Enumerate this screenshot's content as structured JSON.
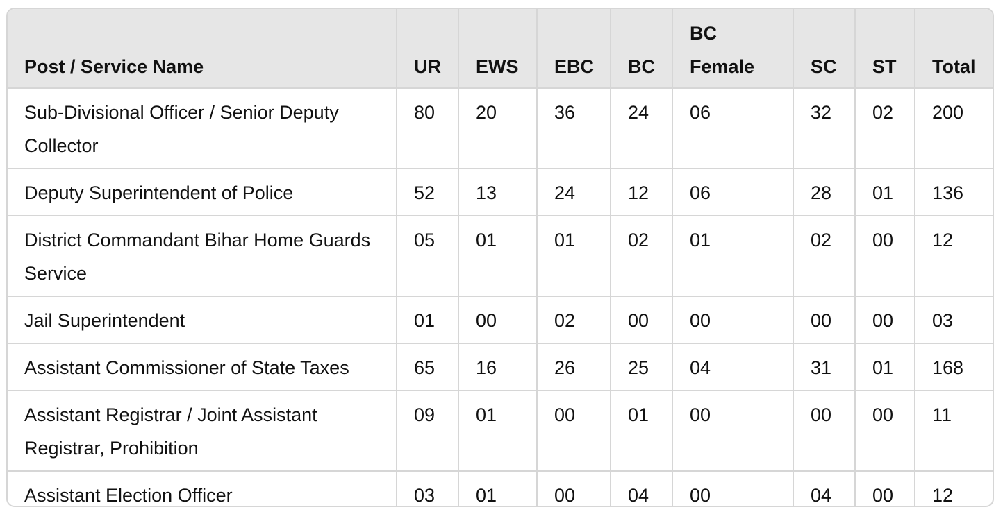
{
  "table": {
    "headers": [
      "Post / Service Name",
      "UR",
      "EWS",
      "EBC",
      "BC",
      "BC Female",
      "SC",
      "ST",
      "Total"
    ],
    "rows": [
      [
        "Sub-Divisional Officer / Senior Deputy Collector",
        "80",
        "20",
        "36",
        "24",
        "06",
        "32",
        "02",
        "200"
      ],
      [
        "Deputy Superintendent of Police",
        "52",
        "13",
        "24",
        "12",
        "06",
        "28",
        "01",
        "136"
      ],
      [
        "District Commandant Bihar Home Guards Service",
        "05",
        "01",
        "01",
        "02",
        "01",
        "02",
        "00",
        "12"
      ],
      [
        "Jail Superintendent",
        "01",
        "00",
        "02",
        "00",
        "00",
        "00",
        "00",
        "03"
      ],
      [
        "Assistant Commissioner of State Taxes",
        "65",
        "16",
        "26",
        "25",
        "04",
        "31",
        "01",
        "168"
      ],
      [
        "Assistant Registrar / Joint Assistant Registrar, Prohibition",
        "09",
        "01",
        "00",
        "01",
        "00",
        "00",
        "00",
        "11"
      ],
      [
        "Assistant Election Officer",
        "03",
        "01",
        "00",
        "04",
        "00",
        "04",
        "00",
        "12"
      ]
    ]
  }
}
